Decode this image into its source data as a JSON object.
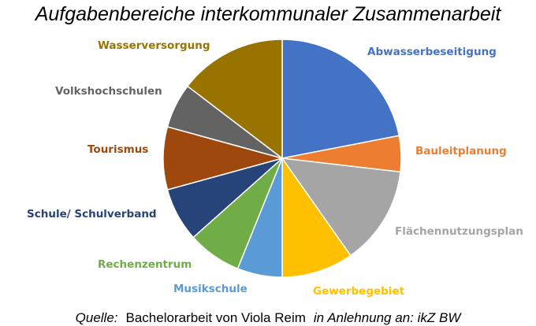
{
  "chart_data": {
    "type": "pie",
    "title": "Aufgabenbereiche interkommunaler Zusammenarbeit",
    "slices": [
      {
        "label": "Abwasserbeseitigung",
        "value": 18,
        "color": "#4472c4"
      },
      {
        "label": "Bauleitplanung",
        "value": 4,
        "color": "#ed7d31"
      },
      {
        "label": "Flächennutzungsplan",
        "value": 11,
        "color": "#a5a5a5"
      },
      {
        "label": "Gewerbegebiet",
        "value": 8,
        "color": "#ffc000"
      },
      {
        "label": "Musikschule",
        "value": 5,
        "color": "#5b9bd5"
      },
      {
        "label": "Rechenzentrum",
        "value": 6,
        "color": "#70ad47"
      },
      {
        "label": "Schule/ Schulverband",
        "value": 6,
        "color": "#264478"
      },
      {
        "label": "Tourismus",
        "value": 7,
        "color": "#9e480e"
      },
      {
        "label": "Volkshochschulen",
        "value": 5,
        "color": "#636363"
      },
      {
        "label": "Wasserversorgung",
        "value": 12,
        "color": "#997300"
      }
    ]
  },
  "source": {
    "prefix": "Quelle:",
    "main": "Bachelorarbeit von Viola Reim",
    "suffix": "in Anlehnung an: ikZ BW"
  }
}
